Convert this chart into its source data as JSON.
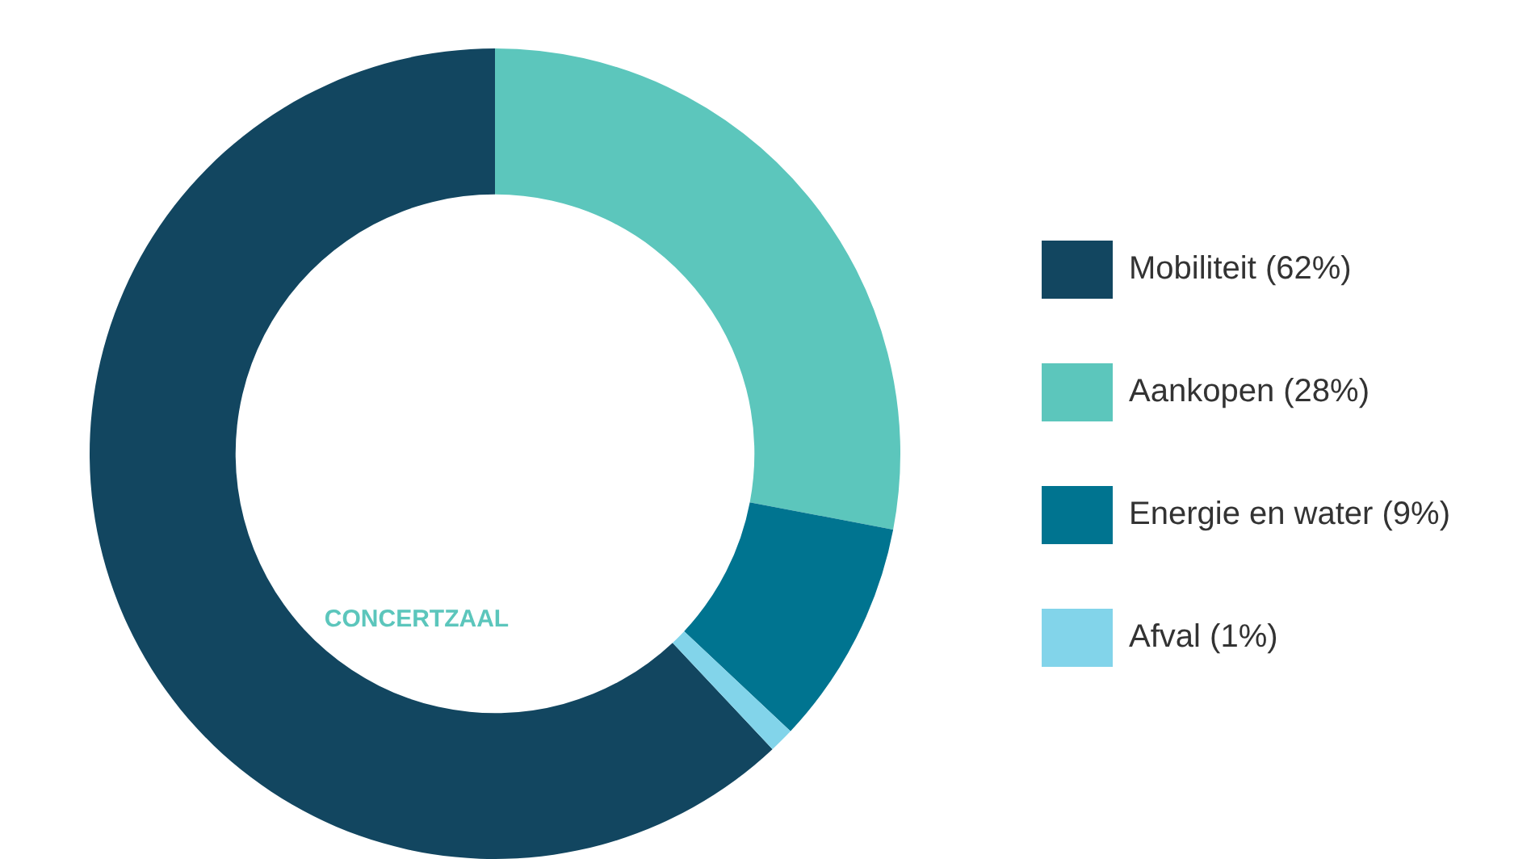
{
  "chart_data": {
    "type": "donut",
    "categories": [
      "Mobiliteit (62%)",
      "Aankopen (28%)",
      "Energie en water (9%)",
      "Afval (1%)"
    ],
    "values": [
      62,
      28,
      9,
      1
    ],
    "colors": [
      "#124660",
      "#5cc6bc",
      "#007490",
      "#82d4ea"
    ],
    "legend": "right",
    "annotations": [
      "CONCERTZAAL"
    ]
  }
}
